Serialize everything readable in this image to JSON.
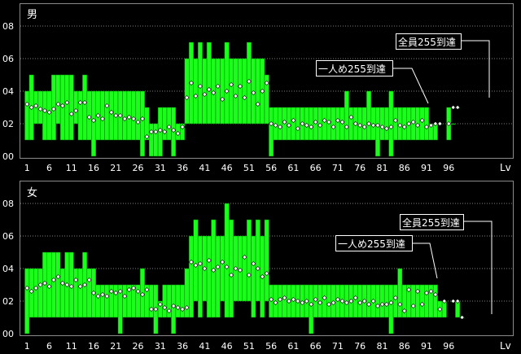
{
  "colors": {
    "background": "#000000",
    "panel_border": "#8a8a8a",
    "grid": "#808080",
    "bar_fill": "#19ff19",
    "bar_stroke": "#0b7a0b",
    "marker_fill": "#ffffff",
    "marker_stroke": "#000000",
    "axis_text": "#ffffff",
    "callout_bg": "#000000",
    "callout_border": "#ffffff"
  },
  "chart_data": [
    {
      "type": "bar",
      "title": "男",
      "x_unit_label": "Lv",
      "xticks": [
        "1",
        "6",
        "11",
        "16",
        "21",
        "26",
        "31",
        "36",
        "41",
        "46",
        "51",
        "56",
        "61",
        "66",
        "71",
        "76",
        "81",
        "86",
        "91",
        "96"
      ],
      "yticks": [
        "00",
        "02",
        "04",
        "06",
        "08"
      ],
      "ylim": [
        0,
        8.5
      ],
      "grid": true,
      "annotations": [
        {
          "text": "全員255到達",
          "level": 98
        },
        {
          "text": "一人め255到達",
          "level": 84
        }
      ],
      "levels": [
        1,
        2,
        3,
        4,
        5,
        6,
        7,
        8,
        9,
        10,
        11,
        12,
        13,
        14,
        15,
        16,
        17,
        18,
        19,
        20,
        21,
        22,
        23,
        24,
        25,
        26,
        27,
        28,
        29,
        30,
        31,
        32,
        33,
        34,
        35,
        36,
        37,
        38,
        39,
        40,
        41,
        42,
        43,
        44,
        45,
        46,
        47,
        48,
        49,
        50,
        51,
        52,
        53,
        54,
        55,
        56,
        57,
        58,
        59,
        60,
        61,
        62,
        63,
        64,
        65,
        66,
        67,
        68,
        69,
        70,
        71,
        72,
        73,
        74,
        75,
        76,
        77,
        78,
        79,
        80,
        81,
        82,
        83,
        84,
        85,
        86,
        87,
        88,
        89,
        90,
        91,
        92,
        93,
        94,
        95,
        96,
        97,
        98
      ],
      "min": [
        1,
        1,
        2,
        2,
        1,
        1,
        1,
        2,
        1,
        1,
        1,
        2,
        1,
        1,
        1,
        0,
        1,
        1,
        1,
        1,
        1,
        1,
        1,
        1,
        1,
        1,
        0,
        1,
        0,
        0,
        0,
        1,
        1,
        0,
        1,
        1,
        2,
        2,
        2,
        2,
        2,
        2,
        2,
        2,
        2,
        2,
        2,
        2,
        2,
        2,
        2,
        2,
        2,
        2,
        2,
        0,
        1,
        1,
        1,
        1,
        1,
        1,
        1,
        1,
        1,
        1,
        1,
        1,
        1,
        1,
        1,
        1,
        1,
        1,
        1,
        1,
        1,
        1,
        1,
        0,
        1,
        1,
        0,
        1,
        1,
        1,
        1,
        1,
        1,
        1,
        1,
        1,
        1,
        2,
        null,
        1,
        2,
        3
      ],
      "max": [
        4,
        5,
        4,
        4,
        4,
        4,
        5,
        5,
        5,
        5,
        5,
        4,
        4,
        5,
        4,
        4,
        4,
        4,
        4,
        4,
        4,
        4,
        4,
        4,
        4,
        4,
        4,
        3,
        2,
        2,
        3,
        3,
        3,
        3,
        2,
        2,
        6,
        7,
        6,
        7,
        6,
        7,
        6,
        6,
        6,
        7,
        6,
        6,
        6,
        6,
        7,
        6,
        6,
        6,
        5,
        3,
        3,
        3,
        3,
        3,
        3,
        3,
        3,
        3,
        3,
        3,
        3,
        3,
        3,
        3,
        3,
        3,
        4,
        3,
        3,
        3,
        3,
        4,
        3,
        3,
        3,
        3,
        4,
        3,
        3,
        3,
        3,
        3,
        3,
        3,
        3,
        2,
        2,
        2,
        null,
        3,
        2,
        3
      ],
      "avg": [
        3.2,
        3.0,
        3.1,
        2.9,
        2.8,
        2.7,
        2.9,
        3.2,
        3.1,
        3.3,
        2.6,
        2.8,
        3.3,
        3.3,
        2.4,
        2.2,
        2.5,
        2.3,
        3.1,
        2.7,
        2.5,
        2.5,
        2.3,
        2.4,
        2.3,
        2.1,
        2.3,
        1.2,
        1.5,
        1.5,
        1.6,
        1.5,
        1.8,
        1.6,
        1.4,
        1.8,
        3.6,
        4.5,
        3.7,
        4.3,
        3.8,
        4.1,
        3.9,
        4.3,
        3.5,
        4.0,
        4.4,
        3.7,
        4.3,
        3.6,
        4.6,
        3.9,
        3.2,
        4.0,
        4.5,
        2.0,
        1.9,
        1.8,
        2.1,
        1.9,
        2.2,
        1.7,
        2.0,
        1.9,
        1.8,
        2.1,
        1.9,
        2.2,
        2.1,
        1.8,
        2.2,
        2.1,
        1.8,
        2.4,
        2.0,
        1.9,
        1.8,
        2.0,
        1.9,
        1.9,
        1.8,
        1.7,
        1.8,
        2.2,
        1.9,
        1.8,
        2.0,
        2.1,
        1.9,
        2.2,
        1.8,
        1.9,
        2.0,
        2.0,
        null,
        2.0,
        3.0,
        3.0
      ]
    },
    {
      "type": "bar",
      "title": "女",
      "x_unit_label": "Lv",
      "xticks": [
        "1",
        "6",
        "11",
        "16",
        "21",
        "26",
        "31",
        "36",
        "41",
        "46",
        "51",
        "56",
        "61",
        "66",
        "71",
        "76",
        "81",
        "86",
        "91",
        "96"
      ],
      "yticks": [
        "00",
        "02",
        "04",
        "06",
        "08"
      ],
      "ylim": [
        0,
        8.5
      ],
      "grid": true,
      "annotations": [
        {
          "text": "全員255到達",
          "level": 99
        },
        {
          "text": "一人め255到達",
          "level": 85
        }
      ],
      "levels": [
        1,
        2,
        3,
        4,
        5,
        6,
        7,
        8,
        9,
        10,
        11,
        12,
        13,
        14,
        15,
        16,
        17,
        18,
        19,
        20,
        21,
        22,
        23,
        24,
        25,
        26,
        27,
        28,
        29,
        30,
        31,
        32,
        33,
        34,
        35,
        36,
        37,
        38,
        39,
        40,
        41,
        42,
        43,
        44,
        45,
        46,
        47,
        48,
        49,
        50,
        51,
        52,
        53,
        54,
        55,
        56,
        57,
        58,
        59,
        60,
        61,
        62,
        63,
        64,
        65,
        66,
        67,
        68,
        69,
        70,
        71,
        72,
        73,
        74,
        75,
        76,
        77,
        78,
        79,
        80,
        81,
        82,
        83,
        84,
        85,
        86,
        87,
        88,
        89,
        90,
        91,
        92,
        93,
        94,
        95,
        96,
        97,
        98,
        99
      ],
      "min": [
        0,
        1,
        1,
        1,
        1,
        1,
        1,
        1,
        1,
        1,
        1,
        1,
        1,
        1,
        1,
        1,
        1,
        1,
        1,
        1,
        1,
        0,
        1,
        1,
        1,
        1,
        1,
        1,
        1,
        0,
        1,
        1,
        1,
        0,
        1,
        1,
        1,
        1,
        2,
        1,
        2,
        1,
        1,
        1,
        2,
        1,
        1,
        2,
        2,
        2,
        2,
        1,
        2,
        1,
        2,
        1,
        1,
        1,
        1,
        1,
        1,
        1,
        1,
        1,
        0,
        1,
        1,
        1,
        1,
        1,
        1,
        1,
        1,
        1,
        1,
        1,
        1,
        1,
        1,
        1,
        1,
        1,
        0,
        1,
        1,
        1,
        1,
        1,
        1,
        1,
        1,
        1,
        1,
        1,
        1,
        null,
        2,
        1,
        1
      ],
      "max": [
        4,
        4,
        4,
        4,
        5,
        5,
        5,
        5,
        4,
        5,
        5,
        4,
        4,
        5,
        4,
        4,
        3,
        3,
        3,
        3,
        3,
        3,
        3,
        3,
        3,
        3,
        4,
        3,
        3,
        3,
        2,
        3,
        3,
        3,
        3,
        3,
        4,
        6,
        7,
        6,
        6,
        6,
        7,
        6,
        6,
        8,
        7,
        6,
        6,
        6,
        7,
        6,
        7,
        6,
        7,
        3,
        3,
        3,
        3,
        3,
        3,
        3,
        3,
        3,
        3,
        3,
        3,
        3,
        3,
        3,
        3,
        3,
        3,
        3,
        3,
        3,
        3,
        3,
        3,
        3,
        3,
        3,
        3,
        3,
        4,
        3,
        3,
        3,
        3,
        3,
        3,
        3,
        3,
        2,
        2,
        null,
        2,
        2,
        1
      ],
      "avg": [
        2.8,
        2.6,
        2.8,
        3.0,
        3.1,
        2.9,
        3.3,
        3.5,
        3.1,
        3.0,
        2.9,
        3.3,
        2.9,
        3.0,
        3.3,
        2.5,
        2.3,
        2.4,
        2.3,
        2.6,
        2.5,
        2.6,
        2.3,
        2.7,
        2.8,
        2.6,
        2.4,
        2.7,
        1.5,
        1.5,
        1.8,
        1.6,
        1.4,
        1.7,
        1.6,
        1.5,
        1.6,
        4.4,
        4.2,
        4.3,
        4.0,
        4.5,
        3.9,
        4.1,
        4.4,
        4.1,
        3.6,
        4.0,
        3.9,
        4.7,
        3.6,
        4.3,
        4.0,
        3.5,
        3.7,
        2.1,
        1.9,
        2.1,
        2.2,
        2.0,
        2.1,
        2.0,
        1.9,
        2.0,
        1.8,
        2.1,
        1.9,
        2.2,
        1.8,
        1.9,
        2.1,
        2.0,
        1.9,
        2.0,
        2.2,
        1.9,
        2.0,
        1.8,
        2.0,
        1.7,
        1.8,
        1.8,
        1.9,
        2.2,
        1.8,
        1.4,
        2.7,
        1.7,
        2.6,
        1.8,
        2.5,
        2.6,
        2.4,
        1.5,
        2.0,
        null,
        2.0,
        2.0,
        1.0
      ]
    }
  ]
}
